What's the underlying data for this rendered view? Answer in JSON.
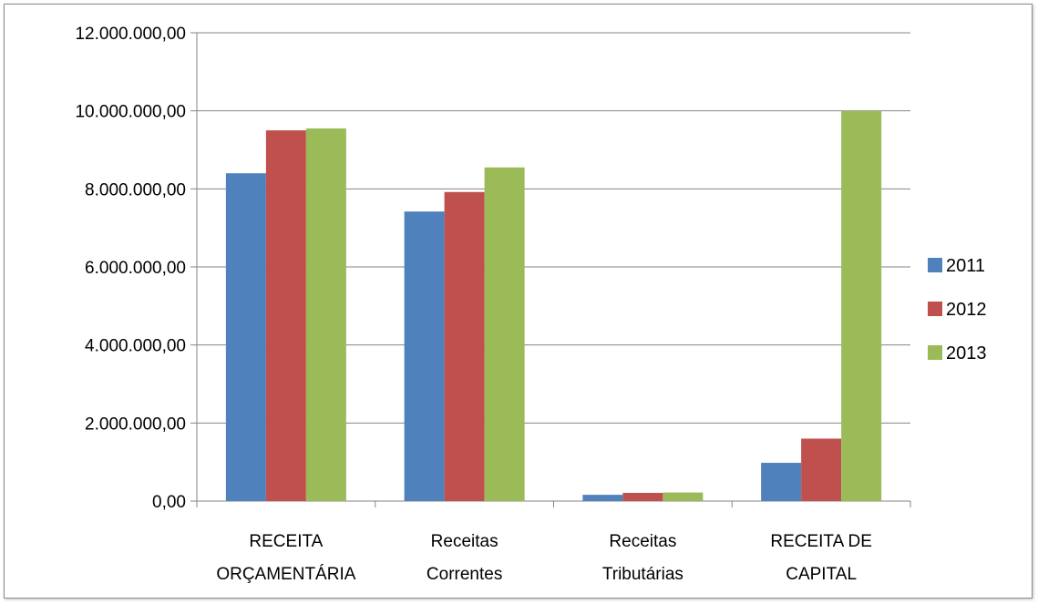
{
  "chart_data": {
    "type": "bar",
    "categories": [
      [
        "RECEITA",
        "ORÇAMENTÁRIA"
      ],
      [
        "Receitas",
        "Correntes"
      ],
      [
        "Receitas",
        "Tributárias"
      ],
      [
        "RECEITA DE",
        "CAPITAL"
      ]
    ],
    "series": [
      {
        "name": "2011",
        "color": "#4f81bd",
        "values": [
          8400000,
          7420000,
          160000,
          980000
        ]
      },
      {
        "name": "2012",
        "color": "#c0504d",
        "values": [
          9500000,
          7920000,
          210000,
          1600000
        ]
      },
      {
        "name": "2013",
        "color": "#9bbb59",
        "values": [
          9550000,
          8550000,
          220000,
          10000000
        ]
      }
    ],
    "ylim": [
      0,
      12000000
    ],
    "yticks": [
      {
        "value": 0,
        "label": "0,00"
      },
      {
        "value": 2000000,
        "label": "2.000.000,00"
      },
      {
        "value": 4000000,
        "label": "4.000.000,00"
      },
      {
        "value": 6000000,
        "label": "6.000.000,00"
      },
      {
        "value": 8000000,
        "label": "8.000.000,00"
      },
      {
        "value": 10000000,
        "label": "10.000.000,00"
      },
      {
        "value": 12000000,
        "label": "12.000.000,00"
      }
    ],
    "grid": true,
    "legend": "right",
    "title": "",
    "xlabel": "",
    "ylabel": ""
  }
}
